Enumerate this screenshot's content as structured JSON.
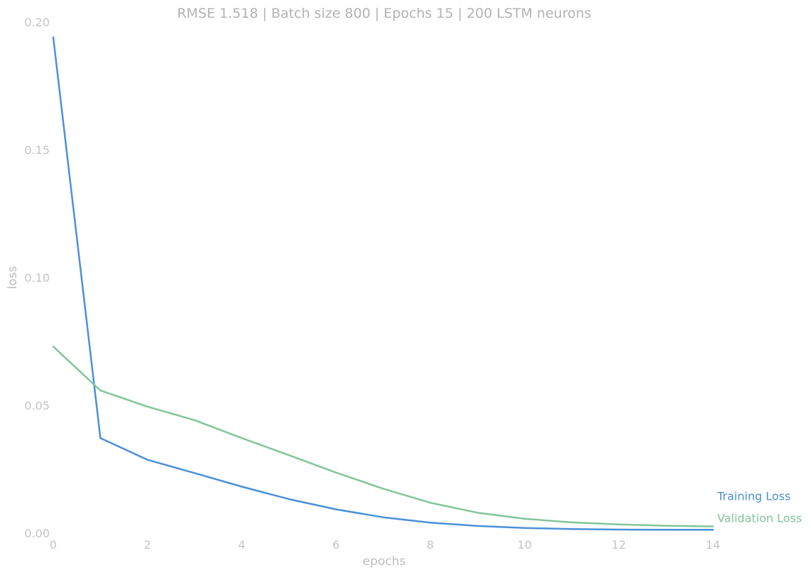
{
  "chart_data": {
    "type": "line",
    "title": "RMSE 1.518 | Batch size 800 | Epochs 15 |  200 LSTM neurons",
    "xlabel": "epochs",
    "ylabel": "loss",
    "xlim": [
      0,
      14
    ],
    "ylim": [
      0,
      0.2
    ],
    "xticks": [
      0,
      2,
      4,
      6,
      8,
      10,
      12,
      14
    ],
    "yticks": [
      "0.00",
      "0.05",
      "0.10",
      "0.15",
      "0.20"
    ],
    "grid": false,
    "legend": "end-of-line labels at right",
    "x": [
      0,
      1,
      2,
      3,
      4,
      5,
      6,
      7,
      8,
      9,
      10,
      11,
      12,
      13,
      14
    ],
    "series": [
      {
        "name": "Training Loss",
        "color": "#4a90d9",
        "values": [
          0.194,
          0.0372,
          0.0287,
          0.0235,
          0.0182,
          0.0133,
          0.0093,
          0.0062,
          0.0041,
          0.0028,
          0.002,
          0.0016,
          0.0014,
          0.0013,
          0.0013
        ]
      },
      {
        "name": "Validation Loss",
        "color": "#82c59a",
        "values": [
          0.073,
          0.0558,
          0.0495,
          0.0442,
          0.0372,
          0.0305,
          0.0237,
          0.0174,
          0.0119,
          0.008,
          0.0056,
          0.0042,
          0.0034,
          0.0029,
          0.0026
        ]
      }
    ]
  }
}
